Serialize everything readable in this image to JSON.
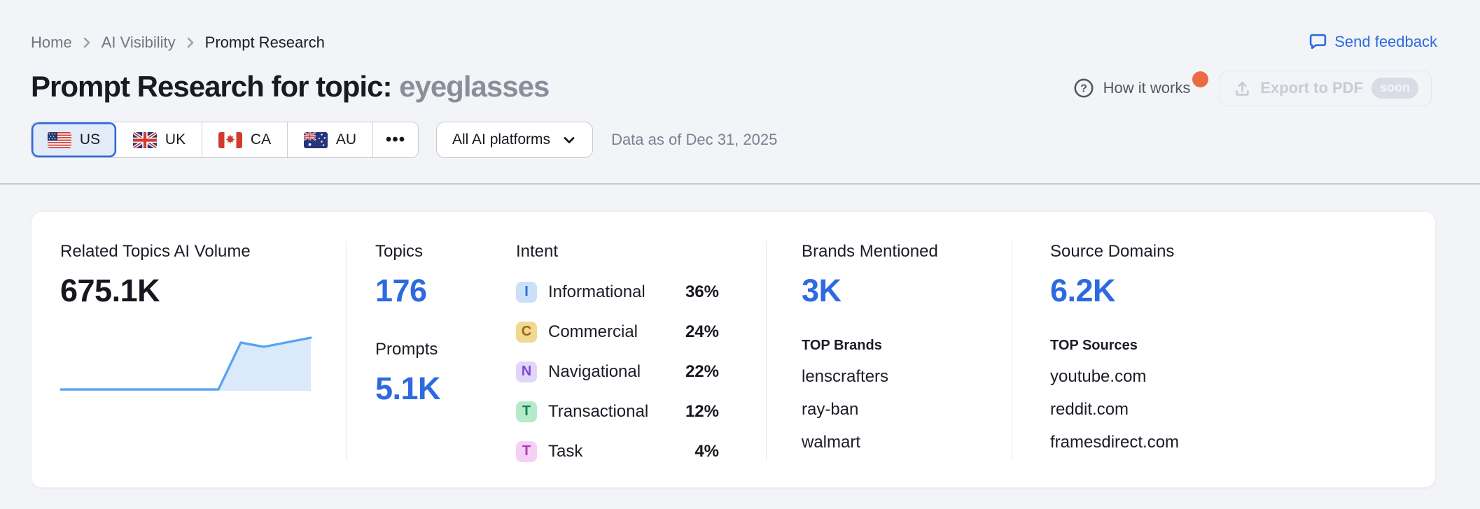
{
  "colors": {
    "accent_blue": "#2d6ae0",
    "notification_orange": "#eb6a41",
    "selected_tab_bg": "#e4ebf8"
  },
  "breadcrumb": {
    "items": [
      "Home",
      "AI Visibility",
      "Prompt Research"
    ]
  },
  "header": {
    "title_prefix": "Prompt Research for topic:",
    "topic": "eyeglasses",
    "send_feedback_label": "Send feedback",
    "how_it_works_label": "How it works",
    "export_label": "Export to PDF",
    "export_badge": "soon"
  },
  "filters": {
    "countries": [
      {
        "code": "US",
        "selected": true
      },
      {
        "code": "UK",
        "selected": false
      },
      {
        "code": "CA",
        "selected": false
      },
      {
        "code": "AU",
        "selected": false
      }
    ],
    "more_label": "•••",
    "platform_dropdown": "All AI platforms",
    "data_as_of": "Data as of Dec 31, 2025"
  },
  "overview": {
    "related_topics": {
      "label": "Related Topics AI Volume",
      "value": "675.1K",
      "sparkline": {
        "x": [
          0,
          226,
          258,
          291,
          358
        ],
        "y": [
          78,
          78,
          11,
          17,
          4
        ],
        "baseline": 80,
        "line_color": "#55a3f2",
        "fill_color": "#daeafb"
      }
    },
    "topics": {
      "label": "Topics",
      "value": "176"
    },
    "prompts": {
      "label": "Prompts",
      "value": "5.1K"
    },
    "intent": {
      "label": "Intent",
      "rows": [
        {
          "letter": "I",
          "name": "Informational",
          "pct": "36%",
          "badge_bg": "#c9e0f8",
          "badge_fg": "#2f6bd0"
        },
        {
          "letter": "C",
          "name": "Commercial",
          "pct": "24%",
          "badge_bg": "#f2d891",
          "badge_fg": "#9c6717"
        },
        {
          "letter": "N",
          "name": "Navigational",
          "pct": "22%",
          "badge_bg": "#e2d6f8",
          "badge_fg": "#7e49d3"
        },
        {
          "letter": "T",
          "name": "Transactional",
          "pct": "12%",
          "badge_bg": "#b4ecc9",
          "badge_fg": "#1f7a4d"
        },
        {
          "letter": "T",
          "name": "Task",
          "pct": "4%",
          "badge_bg": "#f6d0f4",
          "badge_fg": "#ab3bb0"
        }
      ]
    },
    "brands": {
      "label": "Brands Mentioned",
      "value": "3K",
      "top_label": "TOP Brands",
      "items": [
        "lenscrafters",
        "ray-ban",
        "walmart"
      ]
    },
    "sources": {
      "label": "Source Domains",
      "value": "6.2K",
      "top_label": "TOP Sources",
      "items": [
        "youtube.com",
        "reddit.com",
        "framesdirect.com"
      ]
    }
  }
}
